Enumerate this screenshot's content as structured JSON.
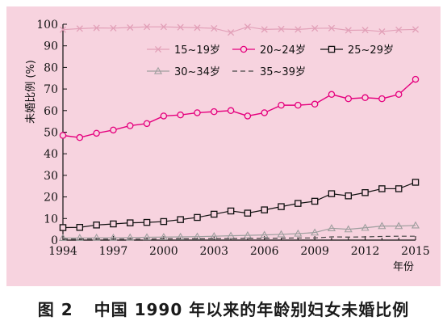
{
  "caption": {
    "figure_number": "图 2",
    "title": "中国 1990 年以来的年龄别妇女未婚比例"
  },
  "colors": {
    "panel_background": "#f7d3df",
    "axis": "#111111",
    "series_15_19": "#e2a0b8",
    "series_20_24": "#e5007e",
    "series_25_29": "#111111",
    "series_30_34": "#9e9e9e",
    "series_35_39": "#444444"
  },
  "chart_data": {
    "type": "line",
    "title": "",
    "xlabel": "年份",
    "ylabel": "未婚比例 (%)",
    "xlim": [
      1994,
      2015
    ],
    "ylim": [
      0,
      100
    ],
    "x_ticks": [
      1994,
      1997,
      2000,
      2003,
      2006,
      2009,
      2012,
      2015
    ],
    "y_ticks": [
      0,
      10,
      20,
      30,
      40,
      50,
      60,
      70,
      80,
      90,
      100
    ],
    "grid": false,
    "legend_position": "top-right",
    "x": [
      1994,
      1995,
      1996,
      1997,
      1998,
      1999,
      2000,
      2001,
      2002,
      2003,
      2004,
      2005,
      2006,
      2007,
      2008,
      2009,
      2010,
      2011,
      2012,
      2013,
      2014,
      2015
    ],
    "series": [
      {
        "name": "15~19岁",
        "marker": "x",
        "line": "solid",
        "values": [
          97.5,
          98,
          98.3,
          98.2,
          98.5,
          98.8,
          98.8,
          98.6,
          98.4,
          98.1,
          96.2,
          98.8,
          97.6,
          97.8,
          97.6,
          98.1,
          98.2,
          97.2,
          97.3,
          96.6,
          97.4,
          97.6
        ]
      },
      {
        "name": "20~24岁",
        "marker": "circle",
        "line": "solid",
        "values": [
          48.5,
          47.5,
          49.5,
          51,
          53,
          54,
          57.5,
          58,
          59,
          59.5,
          60,
          57.5,
          59,
          62.5,
          62.5,
          63,
          67.5,
          65.5,
          66,
          65.5,
          67.5,
          74.5
        ]
      },
      {
        "name": "25~29岁",
        "marker": "square",
        "line": "solid",
        "values": [
          5.8,
          5.9,
          7,
          7.5,
          8,
          8.2,
          8.6,
          9.5,
          10.5,
          12,
          13.5,
          12.5,
          14,
          15.5,
          17,
          18,
          21.5,
          20.5,
          22,
          23.8,
          23.8,
          26.8
        ]
      },
      {
        "name": "30~34岁",
        "marker": "triangle",
        "line": "solid",
        "values": [
          1,
          1,
          1.1,
          1.1,
          1.2,
          1.3,
          1.4,
          1.5,
          1.6,
          1.8,
          2,
          2.2,
          2.4,
          2.7,
          3,
          3.5,
          5.5,
          5,
          5.7,
          6.5,
          6.5,
          6.8
        ]
      },
      {
        "name": "35~39岁",
        "marker": "none",
        "line": "dashed",
        "values": [
          0.5,
          0.5,
          0.5,
          0.5,
          0.5,
          0.5,
          0.6,
          0.6,
          0.6,
          0.7,
          0.7,
          0.8,
          0.8,
          0.9,
          1,
          1,
          1.5,
          1.4,
          1.5,
          1.7,
          1.8,
          1.8
        ]
      }
    ]
  }
}
